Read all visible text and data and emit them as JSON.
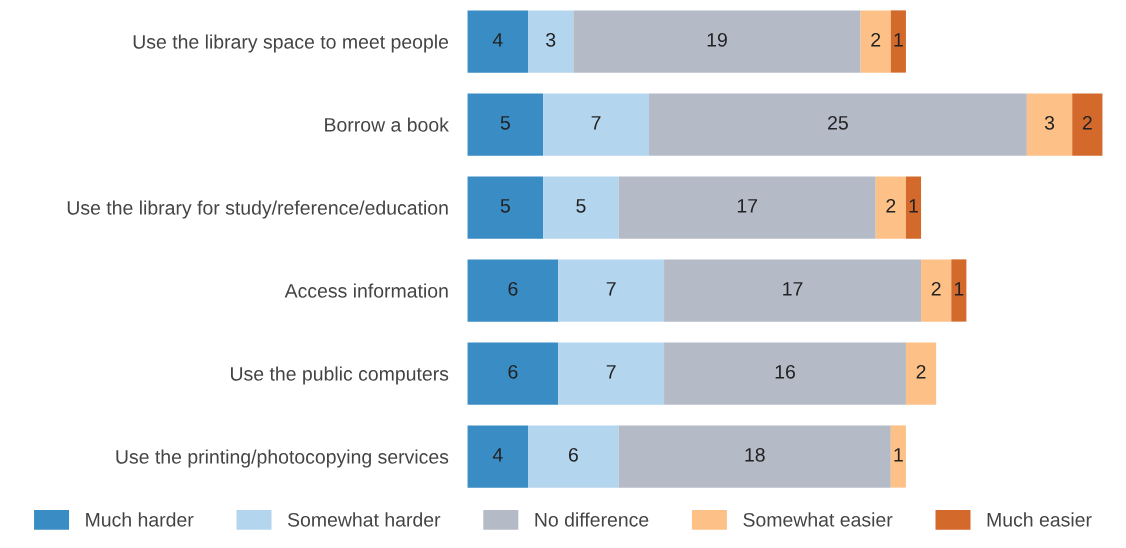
{
  "chart_data": {
    "type": "bar",
    "orientation": "horizontal",
    "stacked": true,
    "data_labels": true,
    "categories": [
      "Use the library space to meet people",
      "Borrow a book",
      "Use the library for study/reference/education",
      "Access information",
      "Use the public computers",
      "Use the printing/photocopying services"
    ],
    "series": [
      {
        "name": "Much harder",
        "color": "#3a8cc4",
        "values": [
          4,
          5,
          5,
          6,
          6,
          4
        ]
      },
      {
        "name": "Somewhat harder",
        "color": "#b3d5ee",
        "values": [
          3,
          7,
          5,
          7,
          7,
          6
        ]
      },
      {
        "name": "No difference",
        "color": "#b4bbc7",
        "values": [
          19,
          25,
          17,
          17,
          16,
          18
        ]
      },
      {
        "name": "Somewhat easier",
        "color": "#fdc187",
        "values": [
          2,
          3,
          2,
          2,
          2,
          1
        ]
      },
      {
        "name": "Much easier",
        "color": "#d4692c",
        "values": [
          1,
          2,
          1,
          1,
          null,
          null
        ]
      }
    ],
    "legend": "bottom",
    "grid": false,
    "tick_labels": "y"
  }
}
